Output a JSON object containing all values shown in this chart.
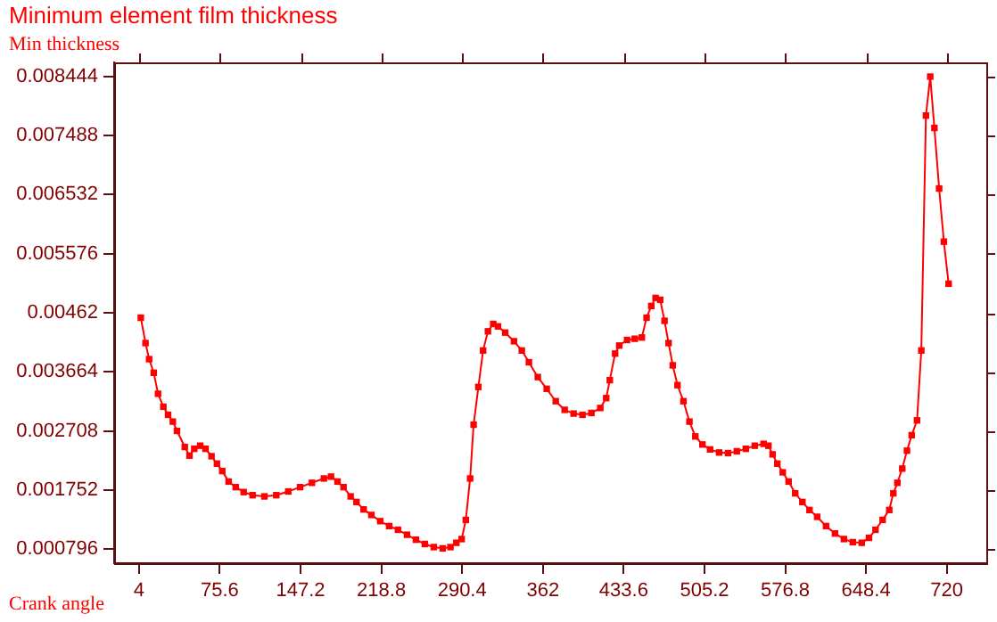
{
  "chart_data": {
    "type": "line",
    "title": "Minimum element film thickness",
    "ylabel": "Min thickness",
    "xlabel": "Crank angle",
    "xlim": [
      -18,
      755
    ],
    "ylim": [
      0.00057,
      0.00867
    ],
    "xticks": [
      4,
      75.6,
      147.2,
      218.8,
      290.4,
      362,
      433.6,
      505.2,
      576.8,
      648.4,
      720
    ],
    "yticks": [
      0.000796,
      0.001752,
      0.002708,
      0.003664,
      0.00462,
      0.005576,
      0.006532,
      0.007488,
      0.008444
    ],
    "grid": false,
    "legend": false,
    "marker": "square",
    "line_style": "solid",
    "series": [
      {
        "color": "#ff0000",
        "x": [
          5.6,
          9.8,
          13,
          17.1,
          20.9,
          25.6,
          29.8,
          34,
          37.7,
          44.6,
          48.8,
          53,
          58.3,
          63,
          68.3,
          73.1,
          77.8,
          83.5,
          89.8,
          96.8,
          104.7,
          115.2,
          125.7,
          136.3,
          146.8,
          157.3,
          167.9,
          174.2,
          180,
          185.3,
          191.6,
          196.8,
          203.1,
          210,
          217.9,
          225.8,
          233.6,
          241.6,
          249.5,
          257.4,
          265.3,
          273.2,
          280.1,
          285.3,
          290,
          293.7,
          297.5,
          300.6,
          304.8,
          309,
          313.3,
          318,
          322.2,
          328.6,
          336.4,
          343.3,
          349.6,
          357.5,
          365.4,
          373.4,
          381.3,
          389.2,
          397.1,
          405,
          412.9,
          418.1,
          421.3,
          426,
          429.7,
          436.6,
          443.4,
          449.7,
          453.9,
          458.1,
          461.9,
          466,
          469.8,
          473.4,
          477.1,
          481.3,
          486.6,
          491.9,
          497.1,
          503.4,
          510.2,
          518.2,
          526.1,
          533.9,
          541.9,
          549.8,
          557.6,
          561.9,
          565.6,
          569.8,
          574.6,
          579.8,
          585.6,
          592,
          598.3,
          605.1,
          613,
          620.9,
          628.8,
          636.7,
          644.6,
          651,
          656.8,
          663.1,
          669,
          672.6,
          676.2,
          680.5,
          684.7,
          688.9,
          693.6,
          697.4,
          701.5,
          705.3,
          709,
          713.2,
          717.4,
          721.6
        ],
        "values": [
          0.00454,
          0.00413,
          0.00387,
          0.00365,
          0.00331,
          0.0031,
          0.00297,
          0.00286,
          0.00271,
          0.00245,
          0.00231,
          0.00242,
          0.00247,
          0.00242,
          0.0023,
          0.00218,
          0.00206,
          0.00189,
          0.0018,
          0.00172,
          0.00167,
          0.00165,
          0.00167,
          0.00173,
          0.0018,
          0.00187,
          0.00194,
          0.00197,
          0.00189,
          0.0018,
          0.00165,
          0.00156,
          0.00144,
          0.00135,
          0.00125,
          0.00117,
          0.00111,
          0.00103,
          0.00095,
          0.00088,
          0.00083,
          0.00081,
          0.00083,
          0.0009,
          0.00096,
          0.00127,
          0.00194,
          0.00281,
          0.00342,
          0.00401,
          0.00432,
          0.00444,
          0.0044,
          0.0043,
          0.00416,
          0.00401,
          0.00382,
          0.00358,
          0.00339,
          0.00319,
          0.00305,
          0.00299,
          0.00297,
          0.003,
          0.00308,
          0.00324,
          0.00353,
          0.00396,
          0.00409,
          0.00418,
          0.0042,
          0.00422,
          0.00454,
          0.00473,
          0.00486,
          0.00483,
          0.00449,
          0.00413,
          0.00377,
          0.00345,
          0.00319,
          0.00286,
          0.00262,
          0.00249,
          0.00241,
          0.00236,
          0.00235,
          0.00238,
          0.00242,
          0.00247,
          0.0025,
          0.00247,
          0.00233,
          0.00218,
          0.00204,
          0.00189,
          0.0017,
          0.00156,
          0.00143,
          0.00132,
          0.00117,
          0.00105,
          0.00096,
          0.00091,
          0.0009,
          0.00098,
          0.00111,
          0.00127,
          0.00143,
          0.0017,
          0.00187,
          0.0021,
          0.00239,
          0.00264,
          0.00288,
          0.00401,
          0.00781,
          0.00844,
          0.00761,
          0.00663,
          0.00577,
          0.00509
        ]
      }
    ]
  }
}
